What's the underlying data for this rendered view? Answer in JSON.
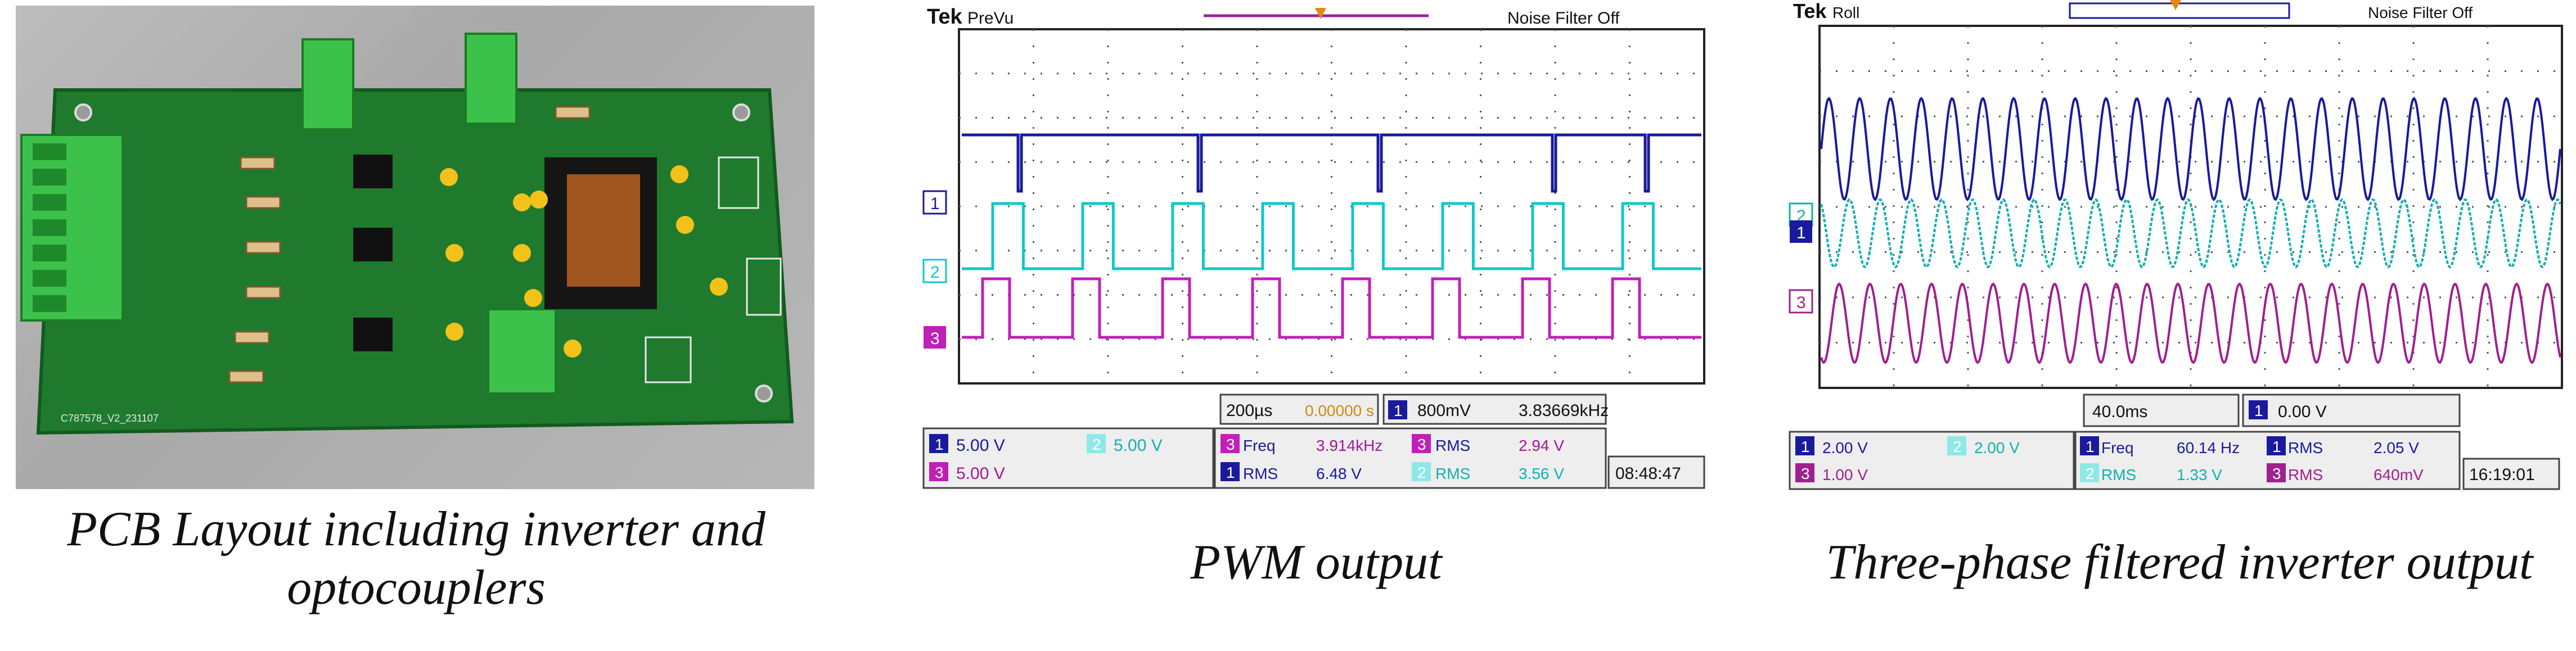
{
  "captions": {
    "pcb_line1": "PCB Layout including inverter and",
    "pcb_line2": "optocouplers",
    "pwm": "PWM output",
    "three_phase": "Three-phase filtered inverter output"
  },
  "pcb": {
    "board_text": "C787578_V2_231107"
  },
  "scope_pwm": {
    "brand": "Tek",
    "mode": "PreVu",
    "noise_filter": "Noise Filter Off",
    "timebase": "200µs",
    "delay": "0.00000 s",
    "trigger_channel": "1",
    "trigger_level": "800mV",
    "trigger_freq": "3.83669kHz",
    "ch1_scale": "5.00 V",
    "ch2_scale": "5.00 V",
    "ch3_scale": "5.00 V",
    "m1_label": "Freq",
    "m1_value": "3.914kHz",
    "m2_label": "RMS",
    "m2_value": "2.94 V",
    "m3_label": "RMS",
    "m3_value": "6.48 V",
    "m4_label": "RMS",
    "m4_value": "3.56 V",
    "clock": "08:48:47",
    "colors": {
      "ch1": "#1a1a9c",
      "ch2": "#10c8c8",
      "ch3": "#c020b8"
    }
  },
  "scope_3ph": {
    "brand": "Tek",
    "mode": "Roll",
    "noise_filter": "Noise Filter Off",
    "timebase": "40.0ms",
    "trigger_channel": "1",
    "trigger_level": "0.00 V",
    "ch1_scale": "2.00 V",
    "ch2_scale": "2.00 V",
    "ch3_scale": "1.00 V",
    "m1_label": "Freq",
    "m1_value": "60.14 Hz",
    "m2_label": "RMS",
    "m2_value": "2.05 V",
    "m3_label": "RMS",
    "m3_value": "1.33 V",
    "m4_label": "RMS",
    "m4_value": "640mV",
    "clock": "16:19:01",
    "colors": {
      "ch1": "#1a1a9c",
      "ch2": "#10b0b0",
      "ch3": "#a02090"
    }
  }
}
